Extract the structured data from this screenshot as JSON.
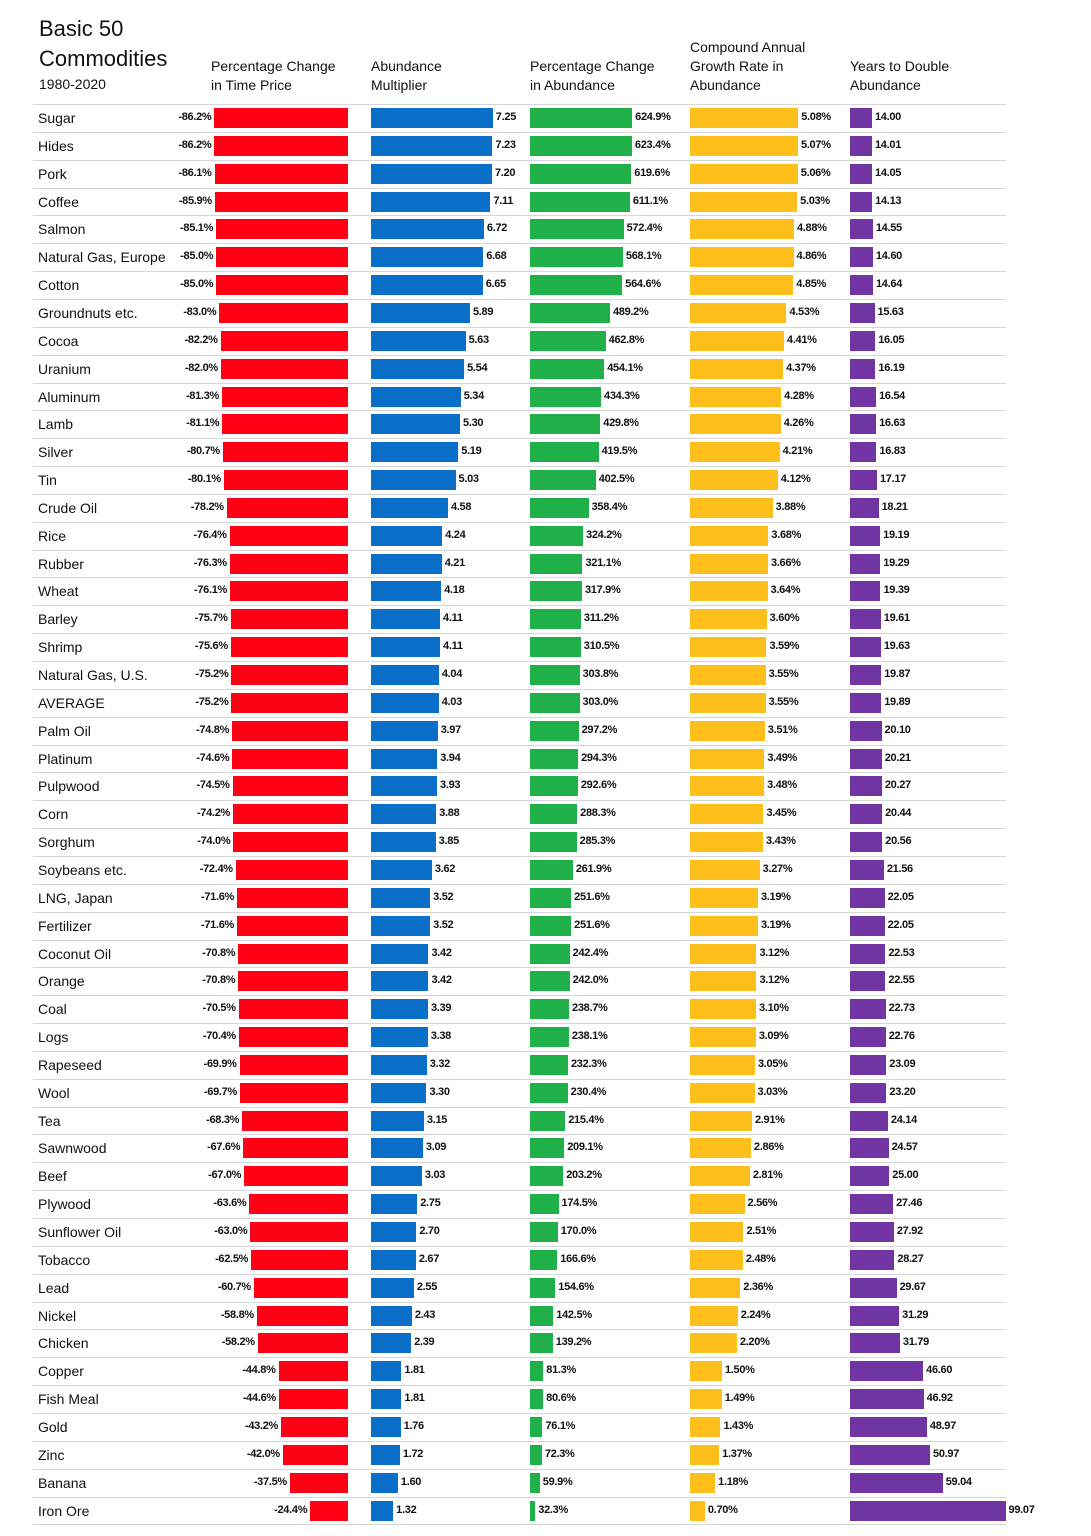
{
  "title": {
    "line1": "Basic 50",
    "line2": "Commodities",
    "subtitle": "1980-2020"
  },
  "colors": {
    "price": "#ff0015",
    "multiplier": "#0a6fc9",
    "pct_abundance": "#1fb04a",
    "cagr": "#ffbf1a",
    "years": "#7035a3"
  },
  "chart_data": {
    "type": "bar",
    "title": "Basic 50 Commodities 1980-2020",
    "columns": [
      {
        "key": "time_price_change",
        "label_lines": [
          "Percentage Change",
          "in Time Price"
        ],
        "unit": "%"
      },
      {
        "key": "abundance_multiplier",
        "label_lines": [
          "Abundance",
          "Multiplier"
        ],
        "unit": ""
      },
      {
        "key": "abundance_change",
        "label_lines": [
          "Percentage Change",
          "in Abundance"
        ],
        "unit": "%"
      },
      {
        "key": "cagr",
        "label_lines": [
          "Compound Annual",
          "Growth Rate in",
          "Abundance"
        ],
        "unit": "%"
      },
      {
        "key": "years_to_double",
        "label_lines": [
          "Years to Double",
          "Abundance"
        ],
        "unit": ""
      }
    ],
    "rows": [
      {
        "name": "Sugar",
        "values": [
          "-86.2%",
          "7.25",
          "624.9%",
          "5.08%",
          "14.00"
        ]
      },
      {
        "name": "Hides",
        "values": [
          "-86.2%",
          "7.23",
          "623.4%",
          "5.07%",
          "14.01"
        ]
      },
      {
        "name": "Pork",
        "values": [
          "-86.1%",
          "7.20",
          "619.6%",
          "5.06%",
          "14.05"
        ]
      },
      {
        "name": "Coffee",
        "values": [
          "-85.9%",
          "7.11",
          "611.1%",
          "5.03%",
          "14.13"
        ]
      },
      {
        "name": "Salmon",
        "values": [
          "-85.1%",
          "6.72",
          "572.4%",
          "4.88%",
          "14.55"
        ]
      },
      {
        "name": "Natural Gas, Europe",
        "values": [
          "-85.0%",
          "6.68",
          "568.1%",
          "4.86%",
          "14.60"
        ]
      },
      {
        "name": "Cotton",
        "values": [
          "-85.0%",
          "6.65",
          "564.6%",
          "4.85%",
          "14.64"
        ]
      },
      {
        "name": "Groundnuts etc.",
        "values": [
          "-83.0%",
          "5.89",
          "489.2%",
          "4.53%",
          "15.63"
        ]
      },
      {
        "name": "Cocoa",
        "values": [
          "-82.2%",
          "5.63",
          "462.8%",
          "4.41%",
          "16.05"
        ]
      },
      {
        "name": "Uranium",
        "values": [
          "-82.0%",
          "5.54",
          "454.1%",
          "4.37%",
          "16.19"
        ]
      },
      {
        "name": "Aluminum",
        "values": [
          "-81.3%",
          "5.34",
          "434.3%",
          "4.28%",
          "16.54"
        ]
      },
      {
        "name": "Lamb",
        "values": [
          "-81.1%",
          "5.30",
          "429.8%",
          "4.26%",
          "16.63"
        ]
      },
      {
        "name": "Silver",
        "values": [
          "-80.7%",
          "5.19",
          "419.5%",
          "4.21%",
          "16.83"
        ]
      },
      {
        "name": "Tin",
        "values": [
          "-80.1%",
          "5.03",
          "402.5%",
          "4.12%",
          "17.17"
        ]
      },
      {
        "name": "Crude Oil",
        "values": [
          "-78.2%",
          "4.58",
          "358.4%",
          "3.88%",
          "18.21"
        ]
      },
      {
        "name": "Rice",
        "values": [
          "-76.4%",
          "4.24",
          "324.2%",
          "3.68%",
          "19.19"
        ]
      },
      {
        "name": "Rubber",
        "values": [
          "-76.3%",
          "4.21",
          "321.1%",
          "3.66%",
          "19.29"
        ]
      },
      {
        "name": "Wheat",
        "values": [
          "-76.1%",
          "4.18",
          "317.9%",
          "3.64%",
          "19.39"
        ]
      },
      {
        "name": "Barley",
        "values": [
          "-75.7%",
          "4.11",
          "311.2%",
          "3.60%",
          "19.61"
        ]
      },
      {
        "name": "Shrimp",
        "values": [
          "-75.6%",
          "4.11",
          "310.5%",
          "3.59%",
          "19.63"
        ]
      },
      {
        "name": "Natural Gas, U.S.",
        "values": [
          "-75.2%",
          "4.04",
          "303.8%",
          "3.55%",
          "19.87"
        ]
      },
      {
        "name": "AVERAGE",
        "values": [
          "-75.2%",
          "4.03",
          "303.0%",
          "3.55%",
          "19.89"
        ]
      },
      {
        "name": "Palm Oil",
        "values": [
          "-74.8%",
          "3.97",
          "297.2%",
          "3.51%",
          "20.10"
        ]
      },
      {
        "name": "Platinum",
        "values": [
          "-74.6%",
          "3.94",
          "294.3%",
          "3.49%",
          "20.21"
        ]
      },
      {
        "name": "Pulpwood",
        "values": [
          "-74.5%",
          "3.93",
          "292.6%",
          "3.48%",
          "20.27"
        ]
      },
      {
        "name": "Corn",
        "values": [
          "-74.2%",
          "3.88",
          "288.3%",
          "3.45%",
          "20.44"
        ]
      },
      {
        "name": "Sorghum",
        "values": [
          "-74.0%",
          "3.85",
          "285.3%",
          "3.43%",
          "20.56"
        ]
      },
      {
        "name": "Soybeans etc.",
        "values": [
          "-72.4%",
          "3.62",
          "261.9%",
          "3.27%",
          "21.56"
        ]
      },
      {
        "name": "LNG, Japan",
        "values": [
          "-71.6%",
          "3.52",
          "251.6%",
          "3.19%",
          "22.05"
        ]
      },
      {
        "name": "Fertilizer",
        "values": [
          "-71.6%",
          "3.52",
          "251.6%",
          "3.19%",
          "22.05"
        ]
      },
      {
        "name": "Coconut Oil",
        "values": [
          "-70.8%",
          "3.42",
          "242.4%",
          "3.12%",
          "22.53"
        ]
      },
      {
        "name": "Orange",
        "values": [
          "-70.8%",
          "3.42",
          "242.0%",
          "3.12%",
          "22.55"
        ]
      },
      {
        "name": "Coal",
        "values": [
          "-70.5%",
          "3.39",
          "238.7%",
          "3.10%",
          "22.73"
        ]
      },
      {
        "name": "Logs",
        "values": [
          "-70.4%",
          "3.38",
          "238.1%",
          "3.09%",
          "22.76"
        ]
      },
      {
        "name": "Rapeseed",
        "values": [
          "-69.9%",
          "3.32",
          "232.3%",
          "3.05%",
          "23.09"
        ]
      },
      {
        "name": "Wool",
        "values": [
          "-69.7%",
          "3.30",
          "230.4%",
          "3.03%",
          "23.20"
        ]
      },
      {
        "name": "Tea",
        "values": [
          "-68.3%",
          "3.15",
          "215.4%",
          "2.91%",
          "24.14"
        ]
      },
      {
        "name": "Sawnwood",
        "values": [
          "-67.6%",
          "3.09",
          "209.1%",
          "2.86%",
          "24.57"
        ]
      },
      {
        "name": "Beef",
        "values": [
          "-67.0%",
          "3.03",
          "203.2%",
          "2.81%",
          "25.00"
        ]
      },
      {
        "name": "Plywood",
        "values": [
          "-63.6%",
          "2.75",
          "174.5%",
          "2.56%",
          "27.46"
        ]
      },
      {
        "name": "Sunflower Oil",
        "values": [
          "-63.0%",
          "2.70",
          "170.0%",
          "2.51%",
          "27.92"
        ]
      },
      {
        "name": "Tobacco",
        "values": [
          "-62.5%",
          "2.67",
          "166.6%",
          "2.48%",
          "28.27"
        ]
      },
      {
        "name": "Lead",
        "values": [
          "-60.7%",
          "2.55",
          "154.6%",
          "2.36%",
          "29.67"
        ]
      },
      {
        "name": "Nickel",
        "values": [
          "-58.8%",
          "2.43",
          "142.5%",
          "2.24%",
          "31.29"
        ]
      },
      {
        "name": "Chicken",
        "values": [
          "-58.2%",
          "2.39",
          "139.2%",
          "2.20%",
          "31.79"
        ]
      },
      {
        "name": "Copper",
        "values": [
          "-44.8%",
          "1.81",
          "81.3%",
          "1.50%",
          "46.60"
        ]
      },
      {
        "name": "Fish Meal",
        "values": [
          "-44.6%",
          "1.81",
          "80.6%",
          "1.49%",
          "46.92"
        ]
      },
      {
        "name": "Gold",
        "values": [
          "-43.2%",
          "1.76",
          "76.1%",
          "1.43%",
          "48.97"
        ]
      },
      {
        "name": "Zinc",
        "values": [
          "-42.0%",
          "1.72",
          "72.3%",
          "1.37%",
          "50.97"
        ]
      },
      {
        "name": "Banana",
        "values": [
          "-37.5%",
          "1.60",
          "59.9%",
          "1.18%",
          "59.04"
        ]
      },
      {
        "name": "Iron Ore",
        "values": [
          "-24.4%",
          "1.32",
          "32.3%",
          "0.70%",
          "99.07"
        ]
      }
    ]
  }
}
